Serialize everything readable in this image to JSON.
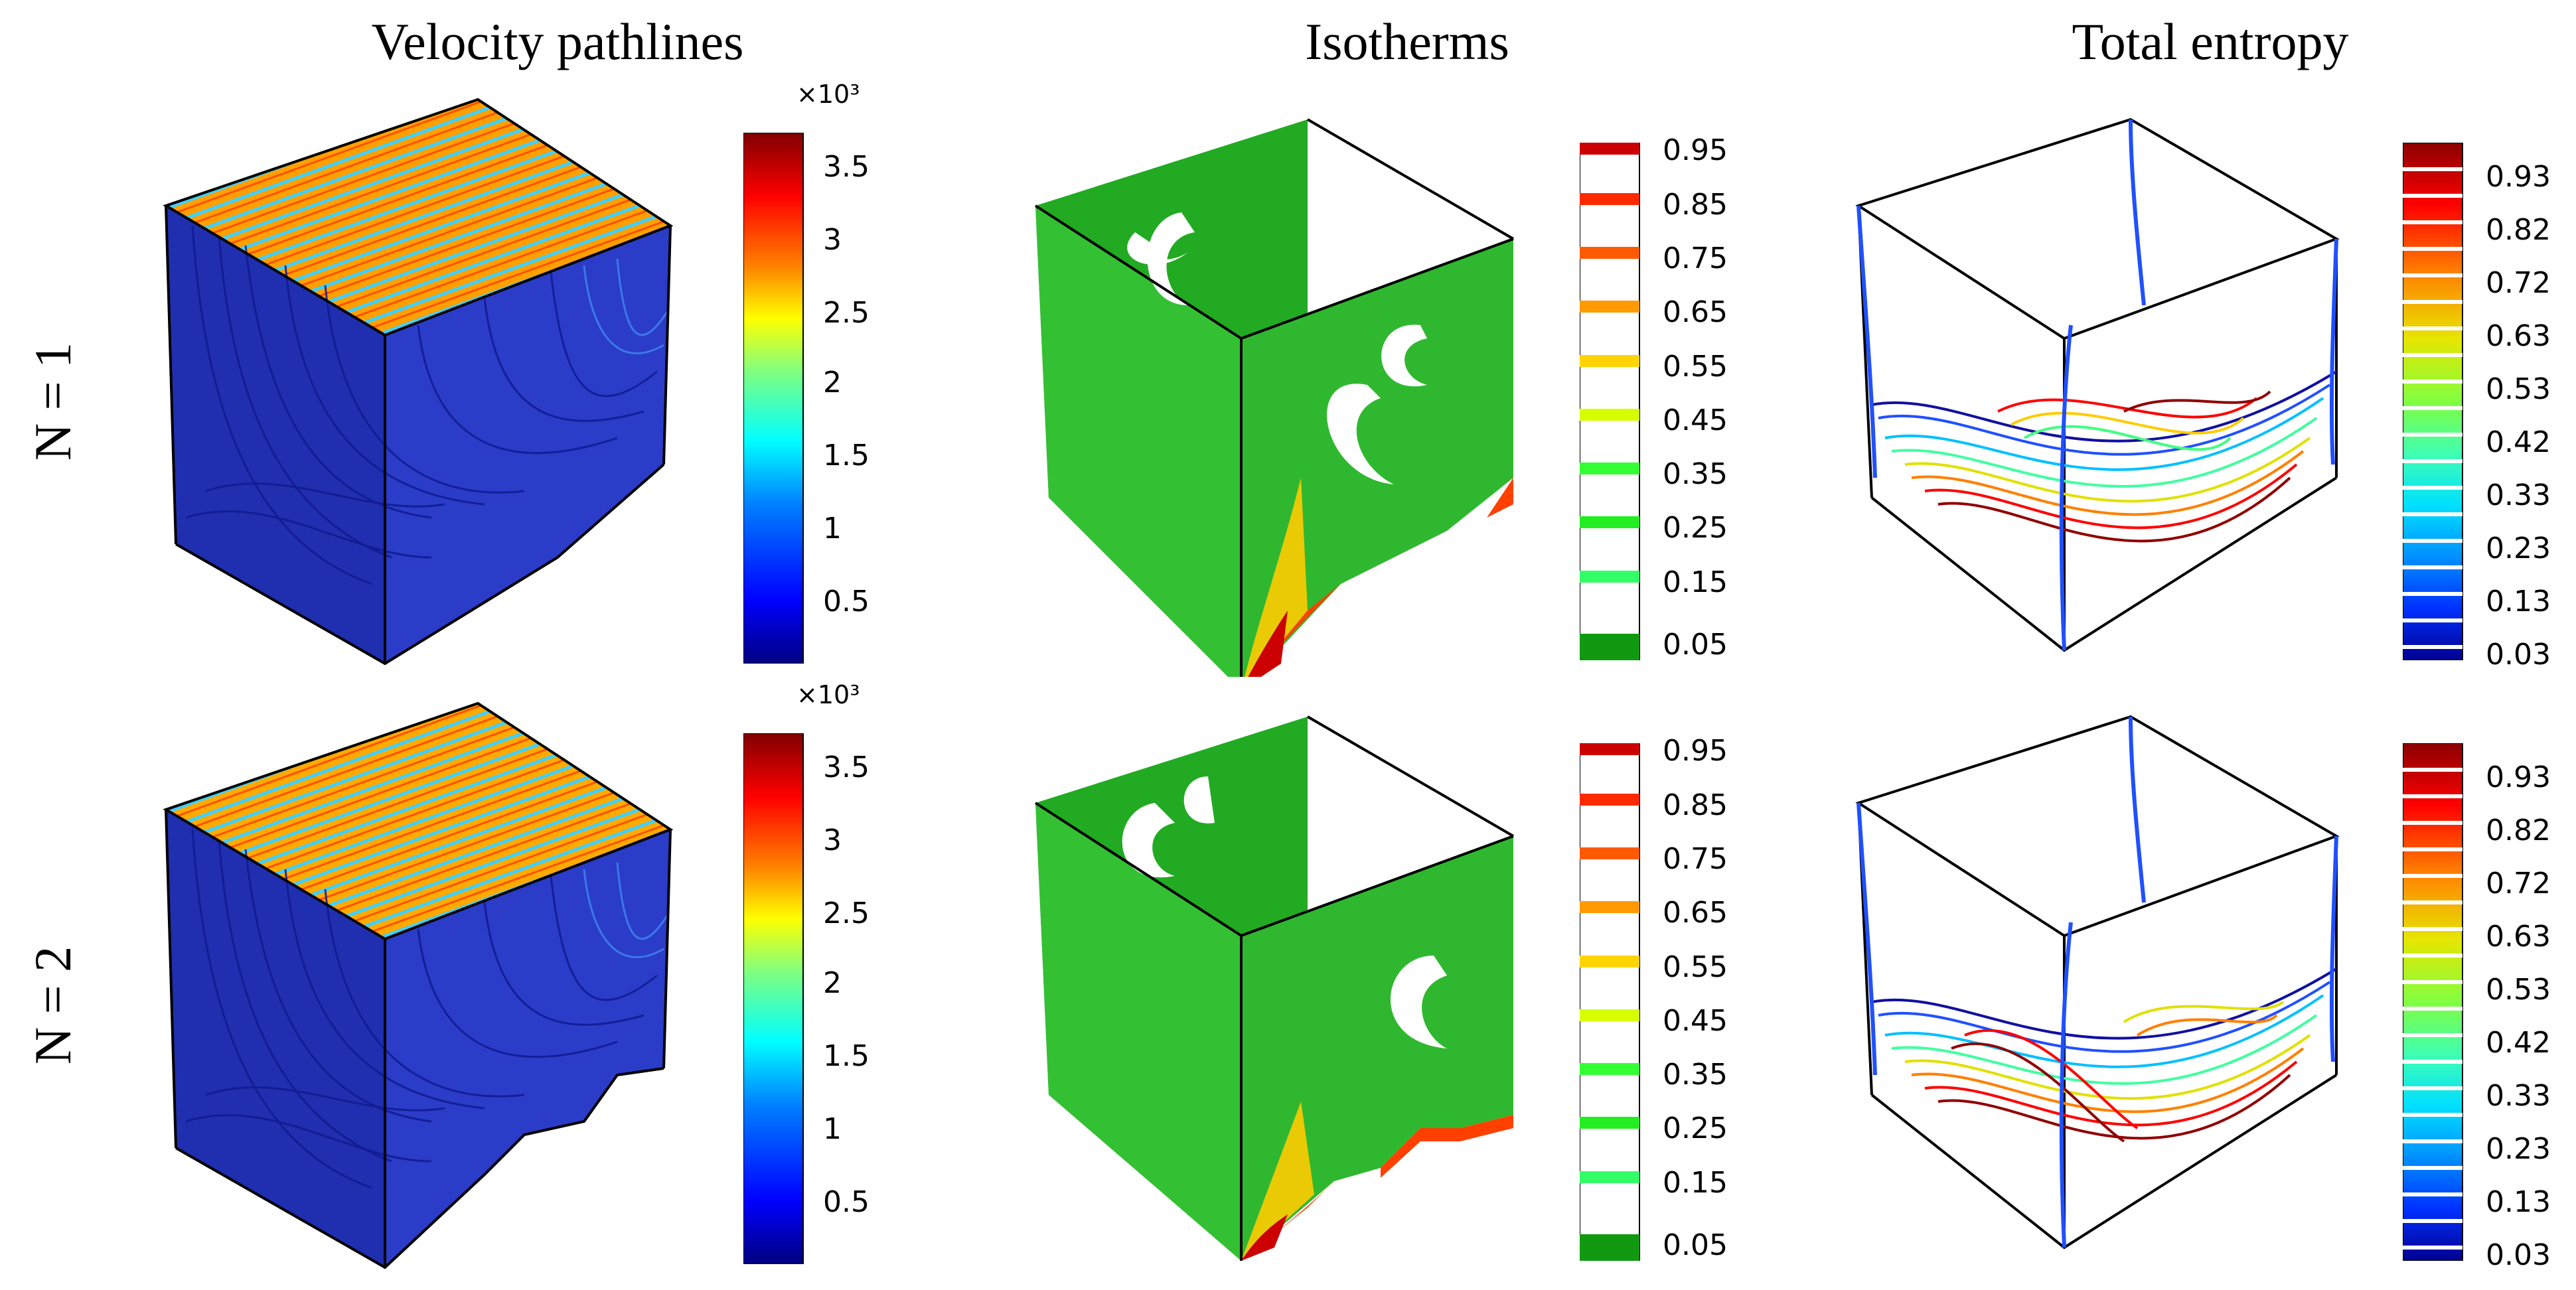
{
  "columns": [
    "Velocity pathlines",
    "Isotherms",
    "Total entropy"
  ],
  "rows": [
    "N = 1",
    "N = 2"
  ],
  "velocity_colorbar": {
    "scale": "×10³",
    "ticks": [
      "3.5",
      "3",
      "2.5",
      "2",
      "1.5",
      "1",
      "0.5"
    ],
    "colors": [
      "#000080",
      "#0000ff",
      "#0080ff",
      "#00ffff",
      "#80ff80",
      "#ffff00",
      "#ff8000",
      "#ff0000",
      "#800000"
    ]
  },
  "isotherm_colorbar": {
    "ticks": [
      "0.95",
      "0.85",
      "0.75",
      "0.65",
      "0.55",
      "0.45",
      "0.35",
      "0.25",
      "0.15",
      "0.05"
    ],
    "colors": [
      "#cc0000",
      "#ff2a00",
      "#ff5a00",
      "#ff9a00",
      "#ffd400",
      "#d7ff00",
      "#33ff33",
      "#22ee22",
      "#33ff66",
      "#119911"
    ]
  },
  "entropy_colorbar": {
    "ticks": [
      "0.93",
      "0.82",
      "0.72",
      "0.63",
      "0.53",
      "0.42",
      "0.33",
      "0.23",
      "0.13",
      "0.03"
    ],
    "colors": [
      "#8b0000",
      "#ff0000",
      "#ff8000",
      "#e6e600",
      "#80ff40",
      "#40ffb0",
      "#00e0ff",
      "#0090ff",
      "#0030ff",
      "#000090"
    ]
  }
}
